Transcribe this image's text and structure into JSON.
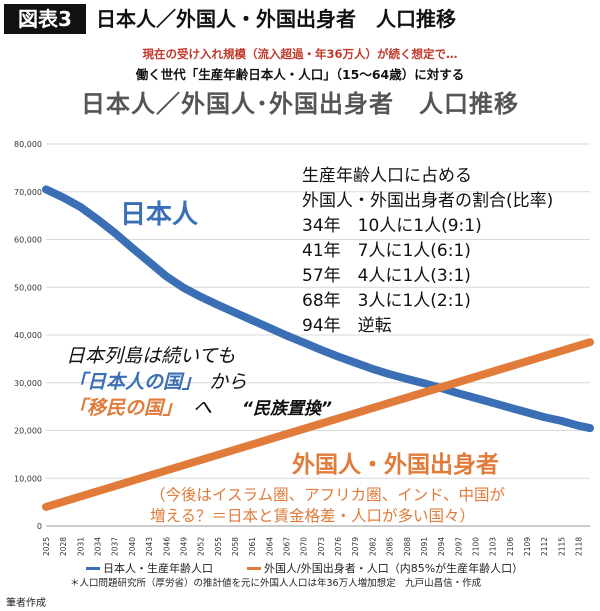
{
  "header": {
    "box_label": "図表3",
    "title": "日本人／外国人・外国出身者　人口推移"
  },
  "subtitle_red": "現在の受け入れ規模（流入超過・年36万人）が続く想定で…",
  "subtitle_black": "働く世代「生産年齢日本人・人口」（15〜64歳）に対する",
  "chart_title": "日本人／外国人･外国出身者　人口推移",
  "annotations": {
    "japanese_label": "日本人",
    "ratio_box": [
      "生産年齢人口に占める",
      "外国人・外国出身者の割合(比率)",
      "34年　10人に1人(9:1)",
      "41年　7人に1人(6:1)",
      "57年　4人に1人(3:1)",
      "68年　3人に1人(2:1)",
      "94年　逆転"
    ],
    "archipelago_line1": "日本列島は続いても",
    "kuni_jp": "「日本人の国」",
    "kara": "から",
    "kuni_imin": "「移民の国」",
    "he": "へ",
    "replacement": "“民族置換”",
    "foreign_label": "外国人・外国出身者",
    "foreign_note_1": "（今後はイスラム圏、アフリカ圏、インド、中国が",
    "foreign_note_2": "増える？＝日本と賃金格差・人口が多い国々）"
  },
  "note": "＊人口問題研究所（厚労省）の推計値を元に外国人人口は年36万人増加想定　九戸山昌信・作成",
  "footer": "筆者作成",
  "colors": {
    "japanese": "#3a6fb5",
    "foreign": "#e07b39",
    "grid": "#d9d9d9",
    "red_text": "#c0392b"
  },
  "chart_data": {
    "type": "line",
    "title": "日本人／外国人･外国出身者　人口推移",
    "ylim": [
      0,
      80000
    ],
    "y_ticks": [
      "0",
      "10,000",
      "20,000",
      "30,000",
      "40,000",
      "50,000",
      "60,000",
      "70,000",
      "80,000"
    ],
    "x_tick_labels": [
      "2025",
      "2028",
      "2031",
      "2034",
      "2037",
      "2040",
      "2043",
      "2046",
      "2049",
      "2052",
      "2055",
      "2058",
      "2061",
      "2064",
      "2067",
      "2070",
      "2073",
      "2076",
      "2079",
      "2082",
      "2085",
      "2088",
      "2091",
      "2094",
      "2097",
      "2100",
      "2103",
      "2106",
      "2109",
      "2112",
      "2115",
      "2118"
    ],
    "grid": "horizontal",
    "legend_position": "bottom",
    "series": [
      {
        "name": "日本人・生産年齢人口",
        "x": [
          2025,
          2028,
          2031,
          2034,
          2037,
          2040,
          2043,
          2046,
          2049,
          2052,
          2055,
          2058,
          2061,
          2064,
          2067,
          2070,
          2073,
          2076,
          2079,
          2082,
          2085,
          2088,
          2091,
          2094,
          2097,
          2100,
          2103,
          2106,
          2109,
          2112,
          2115,
          2118,
          2120
        ],
        "values": [
          70500,
          68800,
          66800,
          64200,
          61400,
          58300,
          55300,
          52300,
          49900,
          48000,
          46300,
          44700,
          43100,
          41500,
          39900,
          38400,
          36900,
          35500,
          34200,
          32900,
          31800,
          30800,
          29900,
          28900,
          27800,
          26800,
          25800,
          24800,
          23800,
          22800,
          22000,
          21000,
          20500
        ]
      },
      {
        "name": "外国人/外国出身者・人口（内85%が生産年齢人口）",
        "x": [
          2025,
          2120
        ],
        "values": [
          4000,
          38500
        ]
      }
    ]
  }
}
